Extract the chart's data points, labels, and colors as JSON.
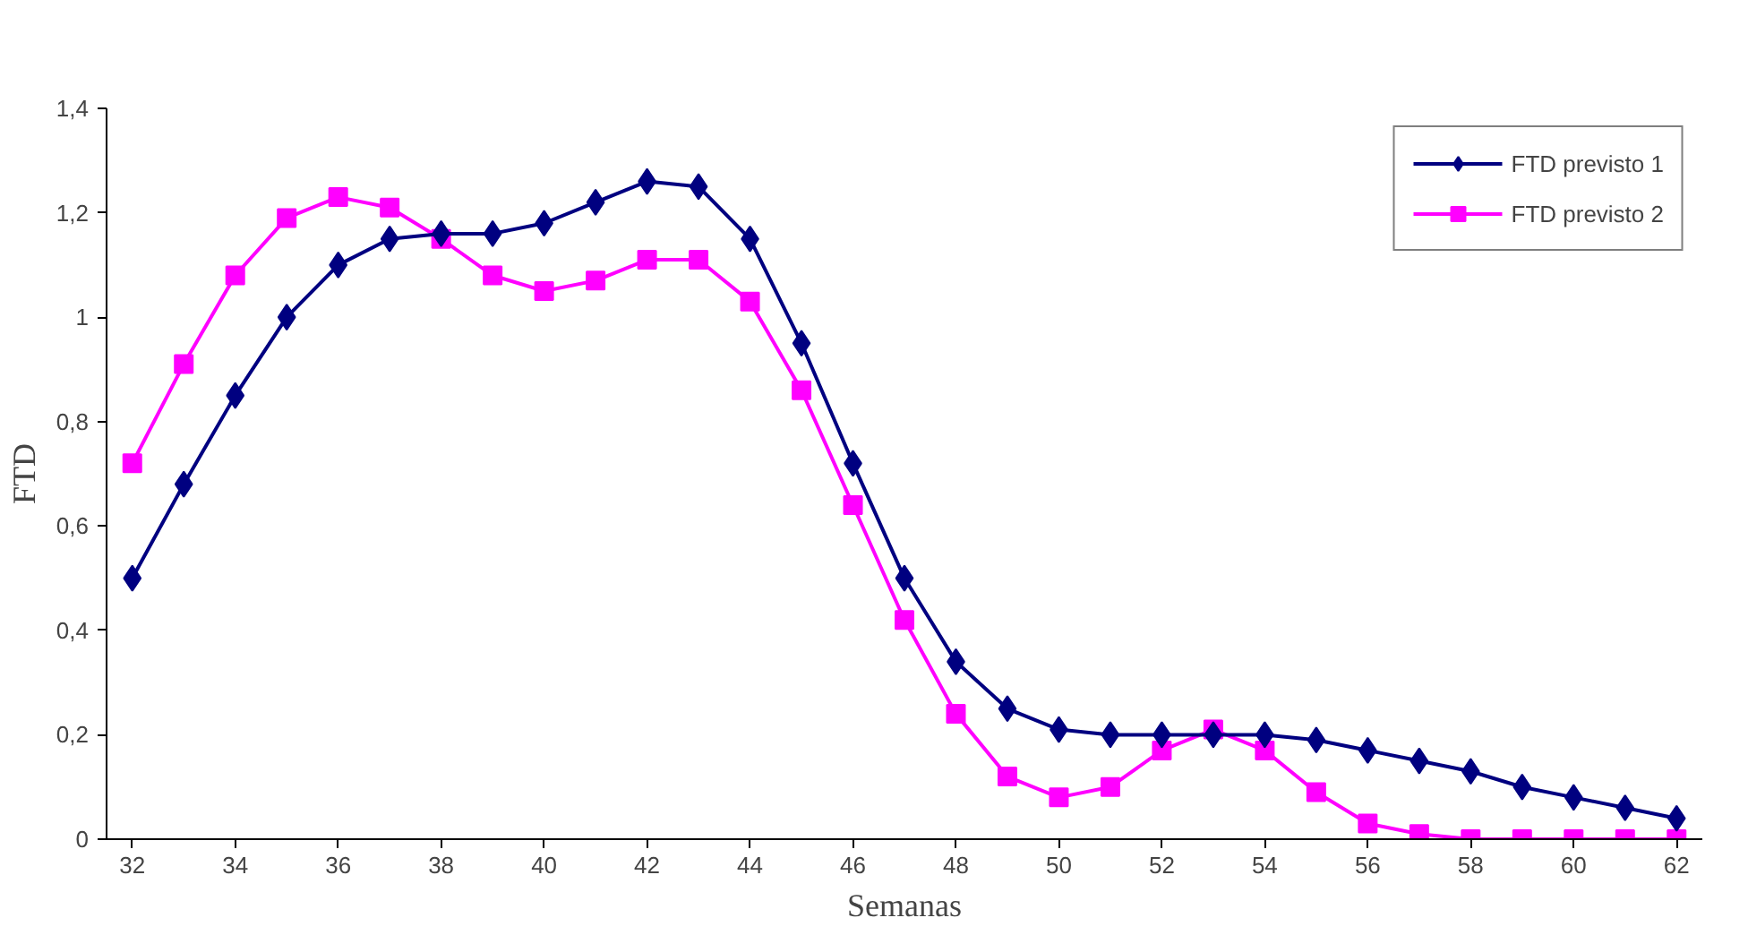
{
  "chart_data": {
    "type": "line",
    "xlabel": "Semanas",
    "ylabel": "FTD",
    "x": [
      32,
      33,
      34,
      35,
      36,
      37,
      38,
      39,
      40,
      41,
      42,
      43,
      44,
      45,
      46,
      47,
      48,
      49,
      50,
      51,
      52,
      53,
      54,
      55,
      56,
      57,
      58,
      59,
      60,
      61,
      62
    ],
    "series": [
      {
        "name": "FTD previsto 1",
        "color": "#000080",
        "marker": "diamond",
        "values": [
          0.5,
          0.68,
          0.85,
          1.0,
          1.1,
          1.15,
          1.16,
          1.16,
          1.18,
          1.22,
          1.26,
          1.25,
          1.15,
          0.95,
          0.72,
          0.5,
          0.34,
          0.25,
          0.21,
          0.2,
          0.2,
          0.2,
          0.2,
          0.19,
          0.17,
          0.15,
          0.13,
          0.1,
          0.08,
          0.06,
          0.04
        ]
      },
      {
        "name": "FTD previsto 2",
        "color": "#ff00ff",
        "marker": "square",
        "values": [
          0.72,
          0.91,
          1.08,
          1.19,
          1.23,
          1.21,
          1.15,
          1.08,
          1.05,
          1.07,
          1.11,
          1.11,
          1.03,
          0.86,
          0.64,
          0.42,
          0.24,
          0.12,
          0.08,
          0.1,
          0.17,
          0.21,
          0.17,
          0.09,
          0.03,
          0.01,
          0,
          0,
          0,
          0,
          0
        ]
      }
    ],
    "xlim": [
      31.5,
      62.5
    ],
    "xticks": [
      32,
      34,
      36,
      38,
      40,
      42,
      44,
      46,
      48,
      50,
      52,
      54,
      56,
      58,
      60,
      62
    ],
    "ylim": [
      0,
      1.4
    ],
    "yticks": [
      0,
      {
        "value": 0.2,
        "label": "0,2"
      },
      {
        "value": 0.4,
        "label": "0,4"
      },
      {
        "value": 0.6,
        "label": "0,6"
      },
      {
        "value": 0.8,
        "label": "0,8"
      },
      1,
      {
        "value": 1.2,
        "label": "1,2"
      },
      {
        "value": 1.4,
        "label": "1,4"
      }
    ],
    "grid": false,
    "legend": "top right",
    "line_style": "solid"
  }
}
